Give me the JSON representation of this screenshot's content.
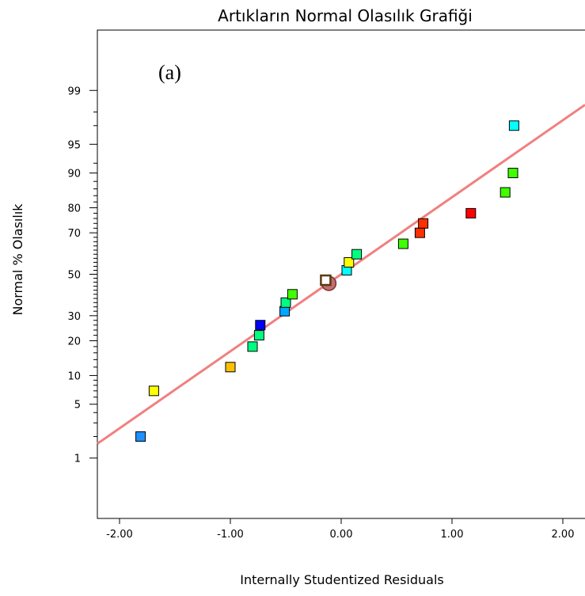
{
  "chart_data": {
    "type": "scatter",
    "title": "Artıkların Normal Olasılık Grafiği",
    "panel_label": "(a)",
    "xlabel": "Internally Studentized Residuals",
    "ylabel": "Normal % Olasılık",
    "xlim": [
      -2.2,
      2.2
    ],
    "x_ticks": [
      {
        "v": -2,
        "label": "-2.00"
      },
      {
        "v": -1,
        "label": "-1.00"
      },
      {
        "v": 0,
        "label": "0.00"
      },
      {
        "v": 1,
        "label": "1.00"
      },
      {
        "v": 2,
        "label": "2.00"
      }
    ],
    "y_scale": "normal-probability",
    "ylim_percent": [
      0.1,
      99.9
    ],
    "y_tick_labels": [
      {
        "v": 1,
        "label": "1"
      },
      {
        "v": 5,
        "label": "5"
      },
      {
        "v": 10,
        "label": "10"
      },
      {
        "v": 20,
        "label": "20"
      },
      {
        "v": 30,
        "label": "30"
      },
      {
        "v": 50,
        "label": "50"
      },
      {
        "v": 70,
        "label": "70"
      },
      {
        "v": 80,
        "label": "80"
      },
      {
        "v": 90,
        "label": "90"
      },
      {
        "v": 95,
        "label": "95"
      },
      {
        "v": 99,
        "label": "99"
      }
    ],
    "y_minor_ticks": [
      2,
      3,
      4,
      6,
      7,
      8,
      9,
      12,
      14,
      16,
      18,
      22,
      24,
      26,
      28,
      32,
      34,
      36,
      38,
      40,
      42,
      44,
      46,
      48,
      52,
      54,
      56,
      58,
      60,
      62,
      64,
      66,
      68,
      72,
      74,
      76,
      78,
      82,
      84,
      86,
      88,
      92,
      97,
      98
    ],
    "reference_line": {
      "color": "#f08080",
      "points": [
        [
          -2.2,
          1.6
        ],
        [
          2.2,
          98.4
        ]
      ]
    },
    "points": [
      {
        "x": -1.81,
        "y": 2.0,
        "color": "#1e90ff"
      },
      {
        "x": -1.69,
        "y": 7.0,
        "color": "#ffff00"
      },
      {
        "x": -1.0,
        "y": 12.0,
        "color": "#ffc000"
      },
      {
        "x": -0.8,
        "y": 18.0,
        "color": "#00ff80"
      },
      {
        "x": -0.74,
        "y": 22.0,
        "color": "#00ff80"
      },
      {
        "x": -0.73,
        "y": 26.0,
        "color": "#0000ff"
      },
      {
        "x": -0.51,
        "y": 32.0,
        "color": "#00a8ff"
      },
      {
        "x": -0.5,
        "y": 36.0,
        "color": "#00ff80"
      },
      {
        "x": -0.44,
        "y": 40.0,
        "color": "#40ff00"
      },
      {
        "x": -0.14,
        "y": 47.0,
        "color": "#ffffff",
        "edge": "#5a3a10",
        "highlight": true
      },
      {
        "x": 0.05,
        "y": 52.0,
        "color": "#00ffff"
      },
      {
        "x": 0.07,
        "y": 56.0,
        "color": "#ffff00"
      },
      {
        "x": 0.14,
        "y": 60.0,
        "color": "#00ff80"
      },
      {
        "x": 0.56,
        "y": 65.0,
        "color": "#40ff00"
      },
      {
        "x": 0.71,
        "y": 70.0,
        "color": "#ff3000"
      },
      {
        "x": 0.74,
        "y": 74.0,
        "color": "#ff3000"
      },
      {
        "x": 1.17,
        "y": 78.0,
        "color": "#ff0000"
      },
      {
        "x": 1.48,
        "y": 85.0,
        "color": "#40ff00"
      },
      {
        "x": 1.55,
        "y": 90.0,
        "color": "#40ff00"
      },
      {
        "x": 1.56,
        "y": 97.0,
        "color": "#00ffff"
      }
    ],
    "grid": false,
    "legend": "none"
  }
}
